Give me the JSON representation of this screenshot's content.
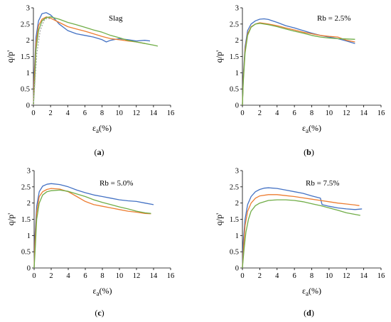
{
  "chart_data": [
    {
      "type": "line",
      "panel_label": "(a)",
      "annotation": "Slag",
      "xlabel": "εa(%)",
      "xlabel_base": "ε",
      "xlabel_sub": "a",
      "xlabel_unit": "(%)",
      "ylabel": "q/p'",
      "xlim": [
        0,
        16
      ],
      "ylim": [
        0,
        3
      ],
      "xticks": [
        0,
        2,
        4,
        6,
        8,
        10,
        12,
        14,
        16
      ],
      "yticks": [
        0,
        0.5,
        1,
        1.5,
        2,
        2.5,
        3
      ],
      "ytick_labels": [
        "0",
        "0.5",
        "1",
        "1.5",
        "2",
        "2.5",
        "3"
      ],
      "grid": false,
      "series": [
        {
          "color": "#4472C4",
          "x": [
            0,
            0.1,
            0.3,
            0.6,
            1.0,
            1.5,
            2.0,
            2.5,
            3.0,
            3.5,
            4.0,
            5.0,
            6.0,
            7.0,
            8.0,
            8.5,
            9.0,
            10.0,
            11.0,
            12.0,
            13.0,
            13.6
          ],
          "y": [
            0,
            1.0,
            2.1,
            2.6,
            2.82,
            2.85,
            2.78,
            2.65,
            2.5,
            2.4,
            2.3,
            2.2,
            2.15,
            2.1,
            2.02,
            1.95,
            2.0,
            2.05,
            2.02,
            1.98,
            2.0,
            1.98
          ]
        },
        {
          "color": "#ED7D31",
          "x": [
            0,
            0.1,
            0.3,
            0.6,
            1.0,
            1.5,
            2.0,
            3.0,
            4.0,
            5.0,
            6.0,
            7.0,
            8.0,
            9.0,
            10.0,
            11.0,
            12.0,
            13.0
          ],
          "y": [
            0,
            0.8,
            1.9,
            2.45,
            2.65,
            2.72,
            2.68,
            2.55,
            2.42,
            2.35,
            2.28,
            2.2,
            2.12,
            2.05,
            2.02,
            1.98,
            1.95,
            1.9
          ]
        },
        {
          "color": "#70AD47",
          "x": [
            0,
            0.15,
            0.3,
            0.6,
            1.0,
            1.5,
            2.0,
            3.0,
            4.0,
            5.0,
            6.0,
            7.0,
            8.0,
            9.0,
            10.0,
            11.0,
            12.0,
            13.0,
            14.0,
            14.5
          ],
          "y": [
            0,
            0.7,
            1.7,
            2.3,
            2.6,
            2.7,
            2.72,
            2.65,
            2.55,
            2.48,
            2.4,
            2.32,
            2.25,
            2.15,
            2.08,
            2.0,
            1.95,
            1.9,
            1.85,
            1.82
          ]
        },
        {
          "color": "#A5A5A5",
          "dashed": true,
          "x": [
            0,
            0.15,
            0.4,
            0.8,
            1.2,
            1.6,
            2.0
          ],
          "y": [
            0,
            0.6,
            1.6,
            2.3,
            2.6,
            2.68,
            2.66
          ]
        }
      ]
    },
    {
      "type": "line",
      "panel_label": "(b)",
      "annotation": "Rb = 2.5%",
      "xlabel": "εa(%)",
      "xlabel_base": "ε",
      "xlabel_sub": "a",
      "xlabel_unit": "(%)",
      "ylabel": "q/p'",
      "xlim": [
        0,
        16
      ],
      "ylim": [
        0,
        3
      ],
      "xticks": [
        0,
        2,
        4,
        6,
        8,
        10,
        12,
        14,
        16
      ],
      "yticks": [
        0,
        0.5,
        1,
        1.5,
        2,
        2.5,
        3
      ],
      "ytick_labels": [
        "0",
        "0.5",
        "1",
        "1.5",
        "2",
        "2.5",
        "3"
      ],
      "grid": false,
      "series": [
        {
          "color": "#4472C4",
          "x": [
            0,
            0.1,
            0.3,
            0.6,
            1.0,
            1.5,
            2.0,
            2.5,
            3.0,
            4.0,
            5.0,
            6.0,
            7.0,
            8.0,
            9.0,
            10.0,
            11.0,
            12.0,
            13.0
          ],
          "y": [
            0,
            0.9,
            1.8,
            2.3,
            2.5,
            2.6,
            2.65,
            2.66,
            2.64,
            2.55,
            2.45,
            2.38,
            2.3,
            2.22,
            2.15,
            2.1,
            2.05,
            1.98,
            1.9
          ]
        },
        {
          "color": "#ED7D31",
          "x": [
            0,
            0.1,
            0.3,
            0.6,
            1.0,
            1.5,
            2.0,
            3.0,
            4.0,
            5.0,
            6.0,
            7.0,
            8.0,
            9.0,
            10.0,
            11.0,
            12.0,
            13.0
          ],
          "y": [
            0,
            0.8,
            1.7,
            2.2,
            2.42,
            2.5,
            2.54,
            2.5,
            2.45,
            2.38,
            2.32,
            2.25,
            2.2,
            2.15,
            2.12,
            2.1,
            2.0,
            1.95
          ]
        },
        {
          "color": "#70AD47",
          "x": [
            0,
            0.1,
            0.3,
            0.6,
            1.0,
            1.5,
            2.0,
            3.0,
            4.0,
            5.0,
            6.0,
            7.0,
            8.0,
            9.0,
            10.0,
            11.0,
            12.0,
            13.0
          ],
          "y": [
            0,
            0.7,
            1.6,
            2.15,
            2.4,
            2.5,
            2.52,
            2.48,
            2.42,
            2.35,
            2.28,
            2.22,
            2.15,
            2.1,
            2.07,
            2.05,
            2.04,
            2.03
          ]
        }
      ]
    },
    {
      "type": "line",
      "panel_label": "(c)",
      "annotation": "Rb = 5.0%",
      "xlabel": "εa(%)",
      "xlabel_base": "ε",
      "xlabel_sub": "a",
      "xlabel_unit": "(%)",
      "ylabel": "q/p'",
      "xlim": [
        0,
        16
      ],
      "ylim": [
        0,
        3
      ],
      "xticks": [
        0,
        2,
        4,
        6,
        8,
        10,
        12,
        14,
        16
      ],
      "yticks": [
        0,
        0.5,
        1,
        1.5,
        2,
        2.5,
        3
      ],
      "ytick_labels": [
        "0",
        "0.5",
        "1",
        "1.5",
        "2",
        "2.5",
        "3"
      ],
      "grid": false,
      "series": [
        {
          "color": "#4472C4",
          "x": [
            0,
            0.1,
            0.3,
            0.6,
            1.0,
            1.5,
            2.0,
            3.0,
            4.0,
            5.0,
            6.0,
            7.0,
            8.0,
            9.0,
            10.0,
            11.0,
            12.0,
            13.0,
            14.0
          ],
          "y": [
            0,
            1.0,
            1.9,
            2.35,
            2.52,
            2.58,
            2.6,
            2.57,
            2.5,
            2.4,
            2.32,
            2.25,
            2.2,
            2.15,
            2.1,
            2.07,
            2.05,
            2.0,
            1.95
          ]
        },
        {
          "color": "#ED7D31",
          "x": [
            0,
            0.1,
            0.3,
            0.6,
            1.0,
            1.5,
            2.0,
            3.0,
            4.0,
            5.0,
            6.0,
            7.0,
            8.0,
            9.0,
            10.0,
            11.0,
            12.0,
            13.0,
            13.7
          ],
          "y": [
            0,
            0.8,
            1.7,
            2.2,
            2.35,
            2.42,
            2.45,
            2.43,
            2.35,
            2.2,
            2.05,
            1.95,
            1.9,
            1.85,
            1.8,
            1.75,
            1.72,
            1.68,
            1.67
          ]
        },
        {
          "color": "#70AD47",
          "x": [
            0,
            0.15,
            0.3,
            0.6,
            1.0,
            1.5,
            2.0,
            3.0,
            4.0,
            5.0,
            6.0,
            7.0,
            8.0,
            9.0,
            10.0,
            11.0,
            12.0,
            13.0,
            13.7
          ],
          "y": [
            0,
            0.7,
            1.5,
            2.0,
            2.25,
            2.35,
            2.38,
            2.4,
            2.36,
            2.28,
            2.2,
            2.1,
            2.02,
            1.95,
            1.88,
            1.82,
            1.75,
            1.7,
            1.68
          ]
        }
      ]
    },
    {
      "type": "line",
      "panel_label": "(d)",
      "annotation": "Rb = 7.5%",
      "xlabel": "εa(%)",
      "xlabel_base": "ε",
      "xlabel_sub": "a",
      "xlabel_unit": "(%)",
      "ylabel": "q/p'",
      "xlim": [
        0,
        16
      ],
      "ylim": [
        0,
        3
      ],
      "xticks": [
        0,
        2,
        4,
        6,
        8,
        10,
        12,
        14,
        16
      ],
      "yticks": [
        0,
        0.5,
        1,
        1.5,
        2,
        2.5,
        3
      ],
      "ytick_labels": [
        "0",
        "0.5",
        "1",
        "1.5",
        "2",
        "2.5",
        "3"
      ],
      "grid": false,
      "series": [
        {
          "color": "#4472C4",
          "x": [
            0,
            0.1,
            0.3,
            0.6,
            1.0,
            1.5,
            2.0,
            2.5,
            3.0,
            4.0,
            5.0,
            6.0,
            7.0,
            8.0,
            9.0,
            9.2,
            10.0,
            11.0,
            12.0,
            13.0,
            13.8
          ],
          "y": [
            0,
            0.8,
            1.5,
            1.95,
            2.2,
            2.35,
            2.42,
            2.46,
            2.47,
            2.45,
            2.4,
            2.35,
            2.3,
            2.22,
            2.15,
            1.95,
            1.9,
            1.85,
            1.82,
            1.8,
            1.82
          ]
        },
        {
          "color": "#ED7D31",
          "x": [
            0,
            0.15,
            0.3,
            0.6,
            1.0,
            1.5,
            2.0,
            3.0,
            4.0,
            5.0,
            6.0,
            7.0,
            8.0,
            9.0,
            10.0,
            11.0,
            12.0,
            13.0,
            13.5
          ],
          "y": [
            0,
            0.7,
            1.3,
            1.75,
            2.0,
            2.15,
            2.22,
            2.26,
            2.26,
            2.23,
            2.2,
            2.16,
            2.12,
            2.08,
            2.04,
            2.0,
            1.97,
            1.94,
            1.92
          ]
        },
        {
          "color": "#70AD47",
          "x": [
            0,
            0.2,
            0.4,
            0.7,
            1.0,
            1.5,
            2.0,
            3.0,
            4.0,
            5.0,
            6.0,
            7.0,
            8.0,
            9.0,
            10.0,
            11.0,
            12.0,
            13.0,
            13.6
          ],
          "y": [
            0,
            0.6,
            1.1,
            1.5,
            1.75,
            1.92,
            2.0,
            2.08,
            2.1,
            2.1,
            2.08,
            2.04,
            1.98,
            1.92,
            1.85,
            1.78,
            1.7,
            1.65,
            1.62
          ]
        }
      ]
    }
  ]
}
